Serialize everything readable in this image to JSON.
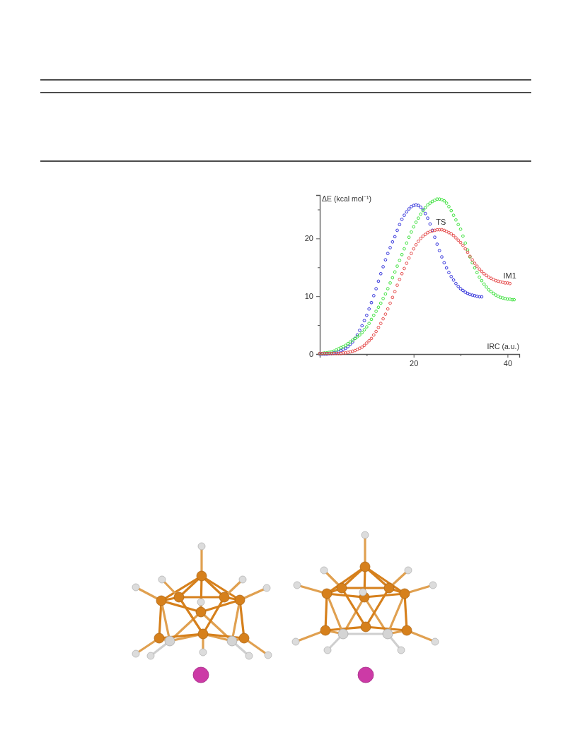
{
  "chart_data": {
    "type": "scatter",
    "xlabel": "IRC (a.u.)",
    "ylabel": "ΔE (kcal mol⁻¹)",
    "xlim": [
      0,
      42.5
    ],
    "ylim": [
      0,
      27.5
    ],
    "xticks": [
      {
        "value": 10,
        "label": null
      },
      20,
      {
        "value": 30,
        "label": null
      },
      40
    ],
    "yticks": [
      0,
      {
        "value": 5,
        "label": null
      },
      10,
      {
        "value": 15,
        "label": null
      },
      20,
      {
        "value": 25,
        "label": null
      }
    ],
    "marker": "circle",
    "series": [
      {
        "color": "#3434dc",
        "x": [
          0,
          0.5,
          1,
          1.5,
          2,
          2.5,
          3,
          3.5,
          4,
          4.5,
          5,
          5.5,
          6,
          6.5,
          7,
          7.5,
          8,
          8.5,
          9,
          9.5,
          10,
          10.5,
          11,
          11.5,
          12,
          12.5,
          13,
          13.5,
          14,
          14.5,
          15,
          15.5,
          16,
          16.5,
          17,
          17.5,
          18,
          18.5,
          19,
          19.5,
          20,
          20.5,
          21,
          21.5,
          22,
          22.5,
          23,
          23.5,
          24,
          24.5,
          25,
          25.5,
          26,
          26.5,
          27,
          27.5,
          28,
          28.5,
          29,
          29.5,
          30,
          30.5,
          31,
          31.5,
          32,
          32.5,
          33,
          33.5,
          34,
          34.5
        ],
        "values": [
          0.0,
          0.0,
          0.0,
          0.0,
          0.1,
          0.1,
          0.2,
          0.3,
          0.4,
          0.6,
          0.8,
          1.0,
          1.3,
          1.7,
          2.1,
          2.7,
          3.3,
          4.1,
          4.9,
          5.8,
          6.7,
          7.8,
          8.9,
          10.1,
          11.3,
          12.6,
          13.9,
          15.1,
          16.3,
          17.4,
          18.4,
          19.4,
          20.3,
          21.4,
          22.4,
          23.3,
          24.0,
          24.6,
          25.1,
          25.5,
          25.7,
          25.8,
          25.7,
          25.4,
          25.0,
          24.3,
          23.5,
          22.5,
          21.4,
          20.2,
          19.0,
          17.9,
          16.8,
          15.8,
          14.9,
          14.1,
          13.4,
          12.8,
          12.2,
          11.7,
          11.3,
          11.0,
          10.7,
          10.5,
          10.3,
          10.2,
          10.1,
          10.0,
          9.9,
          9.9
        ]
      },
      {
        "color": "#3ee23e",
        "x": [
          0,
          0.5,
          1,
          1.5,
          2,
          2.5,
          3,
          3.5,
          4,
          4.5,
          5,
          5.5,
          6,
          6.5,
          7,
          7.5,
          8,
          8.5,
          9,
          9.5,
          10,
          10.5,
          11,
          11.5,
          12,
          12.5,
          13,
          13.5,
          14,
          14.5,
          15,
          15.5,
          16,
          16.5,
          17,
          17.5,
          18,
          18.5,
          19,
          19.5,
          20,
          20.5,
          21,
          21.5,
          22,
          22.5,
          23,
          23.5,
          24,
          24.5,
          25,
          25.5,
          26,
          26.5,
          27,
          27.5,
          28,
          28.5,
          29,
          29.5,
          30,
          30.5,
          31,
          31.5,
          32,
          32.5,
          33,
          33.5,
          34,
          34.5,
          35,
          35.5,
          36,
          36.5,
          37,
          37.5,
          38,
          38.5,
          39,
          39.5,
          40,
          40.5,
          41,
          41.4
        ],
        "values": [
          0.1,
          0.1,
          0.2,
          0.2,
          0.3,
          0.4,
          0.5,
          0.7,
          0.9,
          1.1,
          1.3,
          1.5,
          1.8,
          2.1,
          2.4,
          2.7,
          3.0,
          3.3,
          3.7,
          4.2,
          4.7,
          5.3,
          6.0,
          6.7,
          7.4,
          8.1,
          8.8,
          9.6,
          10.4,
          11.3,
          12.3,
          13.2,
          14.2,
          15.2,
          16.2,
          17.2,
          18.2,
          19.2,
          20.2,
          21.1,
          22.0,
          22.8,
          23.5,
          24.2,
          24.8,
          25.3,
          25.8,
          26.1,
          26.4,
          26.6,
          26.8,
          26.8,
          26.7,
          26.5,
          26.1,
          25.5,
          24.8,
          24.0,
          23.2,
          22.4,
          21.6,
          20.4,
          19.2,
          18.0,
          16.8,
          15.8,
          14.9,
          14.1,
          13.3,
          12.7,
          12.1,
          11.6,
          11.1,
          10.8,
          10.5,
          10.2,
          10.0,
          9.8,
          9.7,
          9.6,
          9.5,
          9.5,
          9.4,
          9.4
        ]
      },
      {
        "color": "#e64c4c",
        "x": [
          0,
          0.5,
          1,
          1.5,
          2,
          2.5,
          3,
          3.5,
          4,
          4.5,
          5,
          5.5,
          6,
          6.5,
          7,
          7.5,
          8,
          8.5,
          9,
          9.5,
          10,
          10.5,
          11,
          11.5,
          12,
          12.5,
          13,
          13.5,
          14,
          14.5,
          15,
          15.5,
          16,
          16.5,
          17,
          17.5,
          18,
          18.5,
          19,
          19.5,
          20,
          20.5,
          21,
          21.5,
          22,
          22.5,
          23,
          23.5,
          24,
          24.5,
          25,
          25.5,
          26,
          26.5,
          27,
          27.5,
          28,
          28.5,
          29,
          29.5,
          30,
          30.5,
          31,
          31.5,
          32,
          32.5,
          33,
          33.5,
          34,
          34.5,
          35,
          35.5,
          36,
          36.5,
          37,
          37.5,
          38,
          38.5,
          39,
          39.5,
          40,
          40.5
        ],
        "values": [
          0.1,
          0.1,
          0.1,
          0.1,
          0.1,
          0.1,
          0.1,
          0.1,
          0.1,
          0.1,
          0.2,
          0.2,
          0.3,
          0.4,
          0.5,
          0.6,
          0.8,
          1.0,
          1.2,
          1.5,
          1.9,
          2.3,
          2.7,
          3.3,
          3.9,
          4.6,
          5.3,
          6.1,
          6.9,
          7.8,
          8.8,
          9.8,
          10.8,
          11.9,
          12.9,
          13.9,
          14.8,
          15.7,
          16.6,
          17.4,
          18.2,
          18.9,
          19.5,
          20.0,
          20.4,
          20.7,
          21.0,
          21.2,
          21.3,
          21.4,
          21.5,
          21.5,
          21.5,
          21.4,
          21.2,
          21.0,
          20.8,
          20.5,
          20.1,
          19.7,
          19.3,
          18.8,
          18.2,
          17.6,
          16.9,
          16.3,
          15.7,
          15.2,
          14.7,
          14.3,
          13.9,
          13.6,
          13.3,
          13.1,
          12.9,
          12.7,
          12.6,
          12.5,
          12.4,
          12.3,
          12.3,
          12.2
        ]
      }
    ],
    "annotations": [
      {
        "text": "TS",
        "x": 25.8,
        "y": 21.5
      },
      {
        "text": "IM1",
        "x": 40.5,
        "y": 12.2
      }
    ]
  }
}
